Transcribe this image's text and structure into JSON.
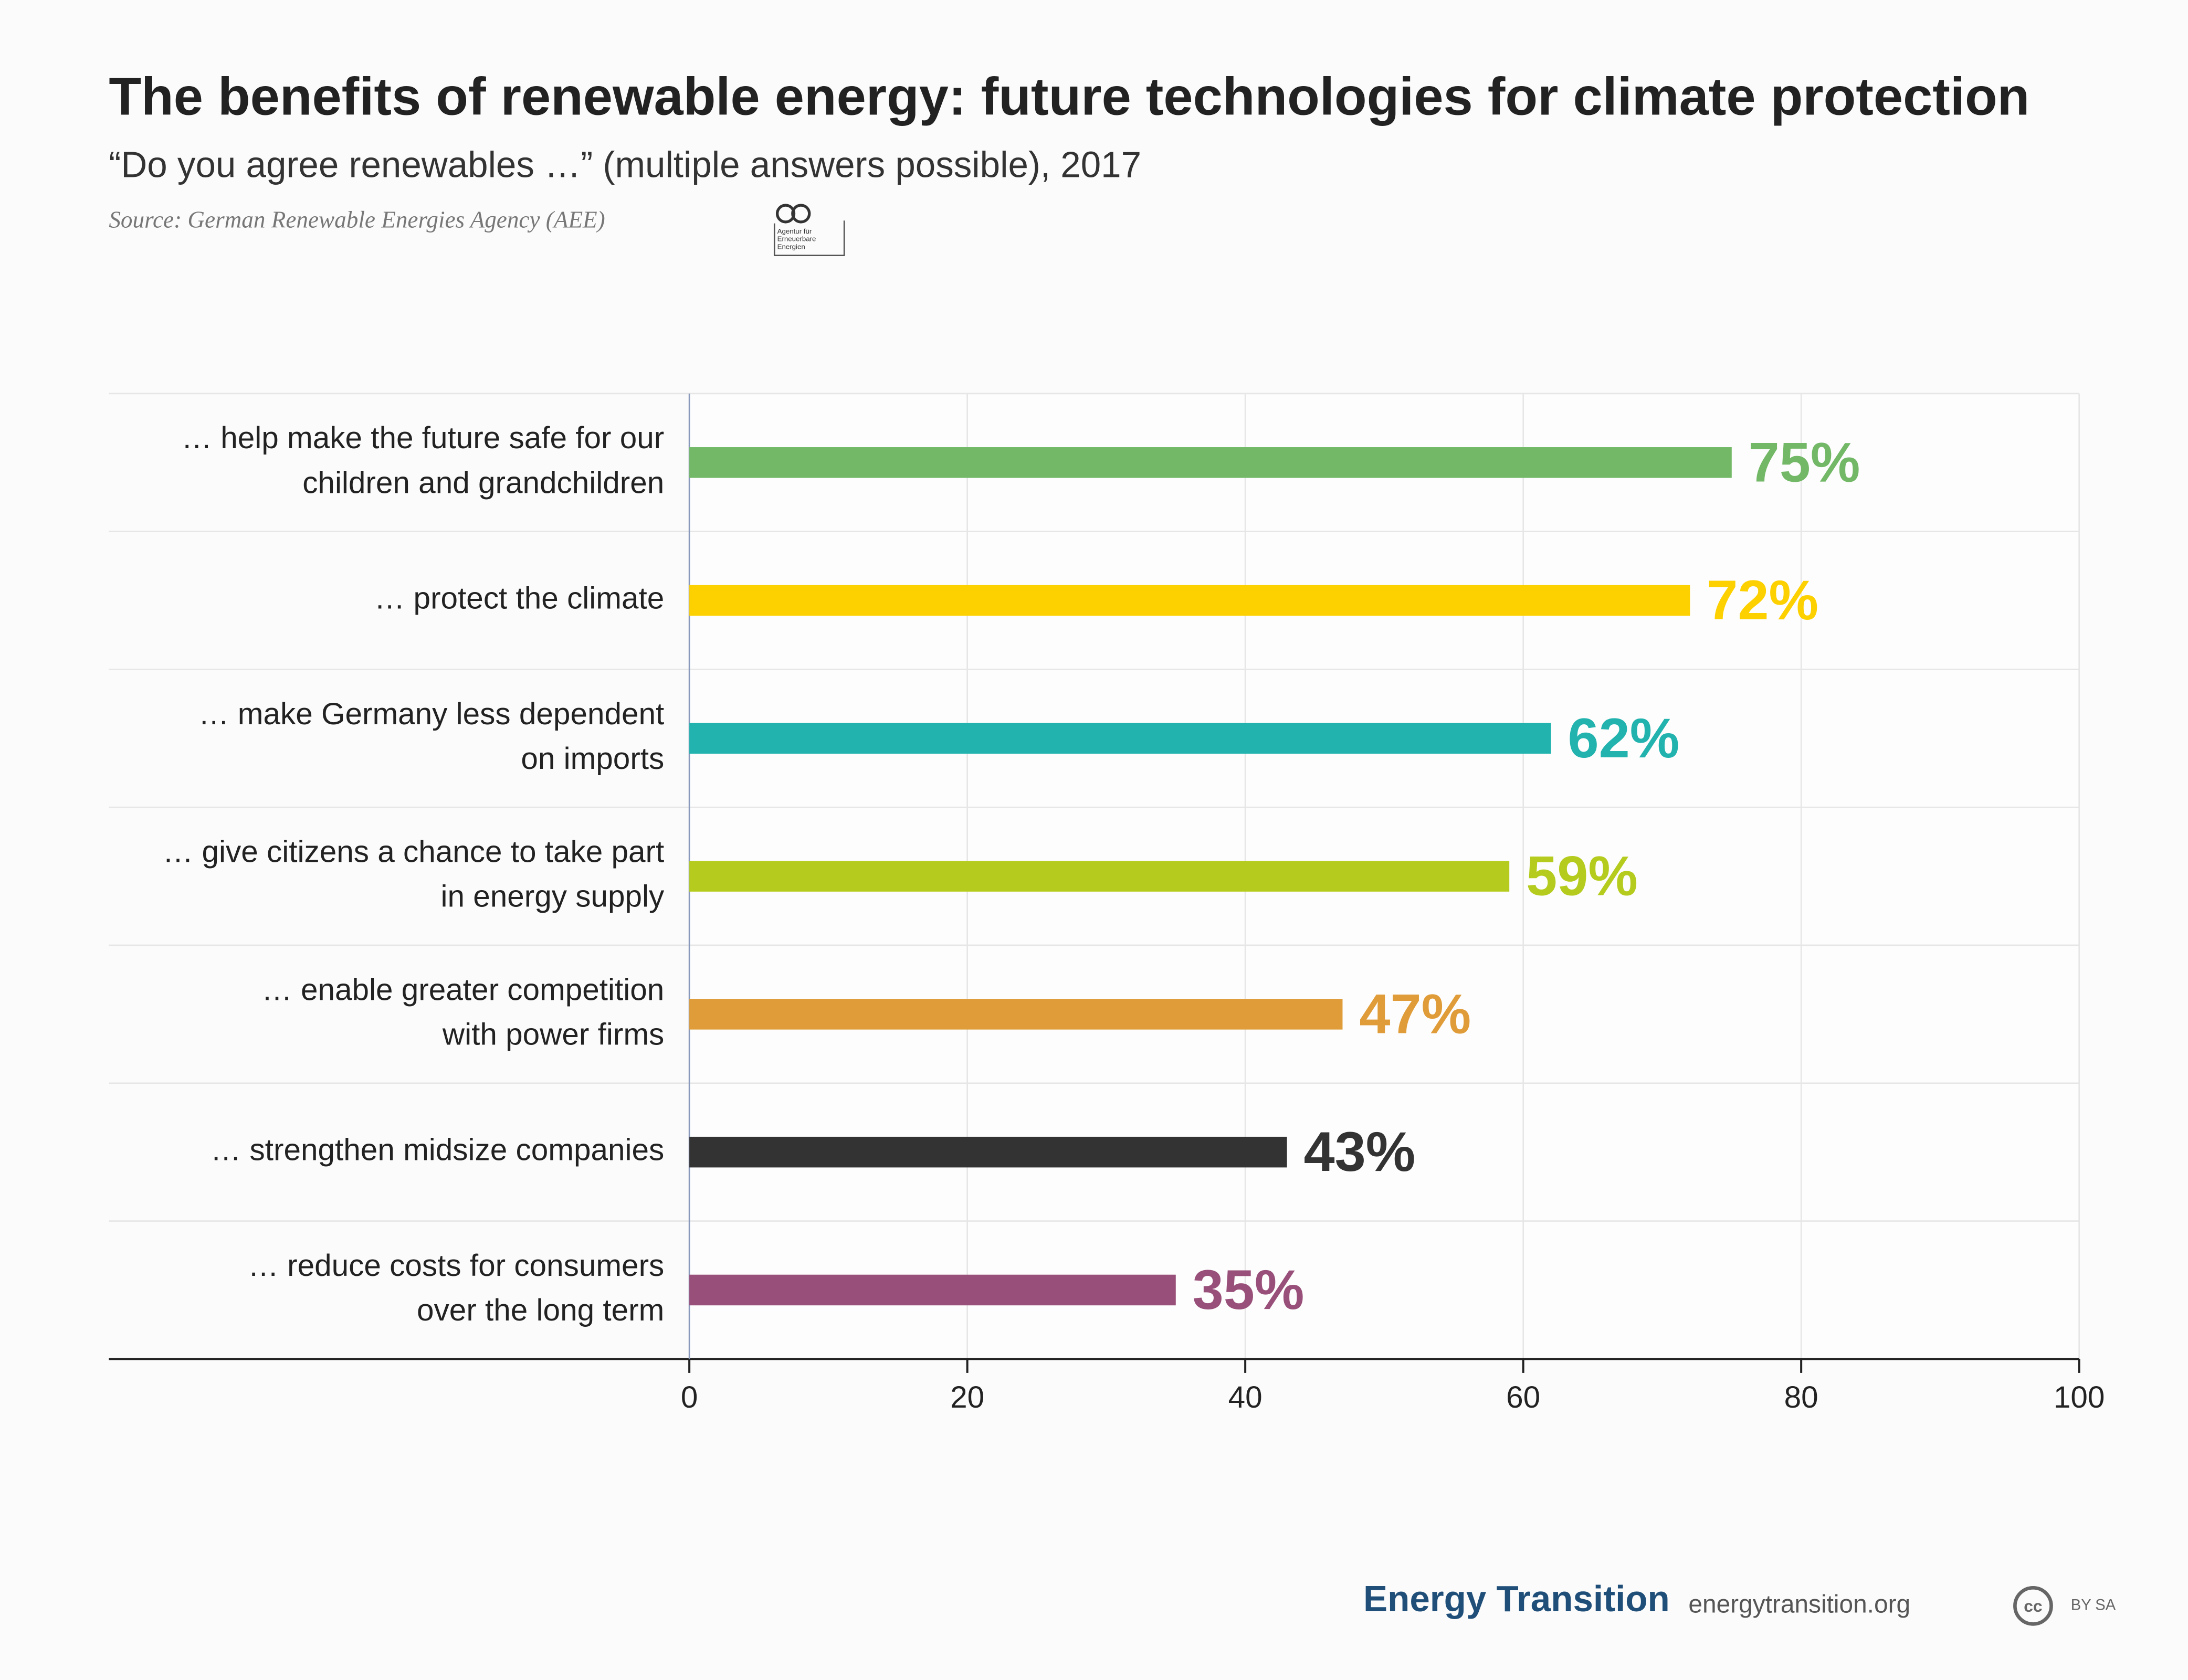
{
  "chart_data": {
    "type": "hbar",
    "title": "The benefits of renewable energy: future technologies for climate protection",
    "subtitle": "“Do you agree renewables …” (multiple answers possible), 2017",
    "source": "Source: German Renewable Energies Agency (AEE)",
    "logo": [
      "Agentur für",
      "Erneuerbare",
      "Energien"
    ],
    "categories": [
      [
        "… help make the future safe for our",
        "children and grandchildren"
      ],
      [
        "… protect the climate"
      ],
      [
        "… make Germany less dependent",
        "on imports"
      ],
      [
        "… give citizens a chance to take part",
        "in energy supply"
      ],
      [
        "… enable greater competition",
        "with power firms"
      ],
      [
        "… strengthen midsize companies"
      ],
      [
        "… reduce costs for consumers",
        "over the long term"
      ]
    ],
    "values": [
      75,
      72,
      62,
      59,
      47,
      43,
      35
    ],
    "value_labels": [
      "75%",
      "72%",
      "62%",
      "59%",
      "47%",
      "43%",
      "35%"
    ],
    "colors": [
      "#72b866",
      "#fdd000",
      "#22b3ae",
      "#b5cc1e",
      "#e09c38",
      "#333333",
      "#984f79"
    ],
    "xlim": [
      0,
      100
    ],
    "xticks": [
      0,
      20,
      40,
      60,
      80,
      100
    ],
    "grid": true,
    "footer": {
      "brand": "Energy Transition",
      "url": "energytransition.org",
      "license": "BY SA",
      "cc": "cc"
    }
  }
}
